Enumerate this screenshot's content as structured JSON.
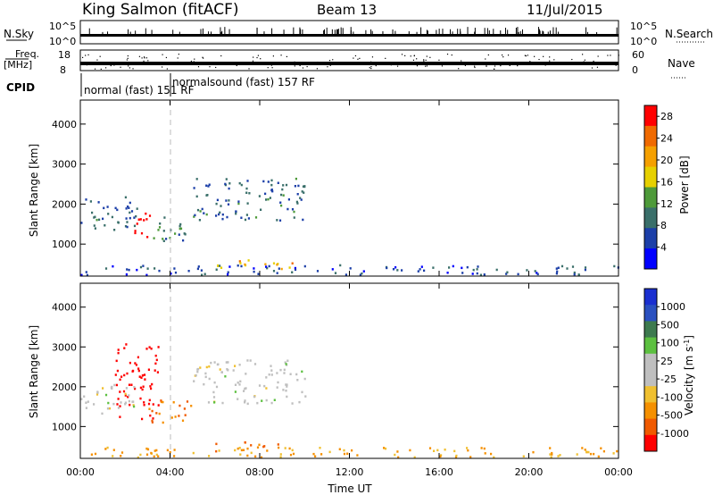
{
  "header": {
    "station": "King Salmon (fitACF)",
    "beam": "Beam 13",
    "date": "11/Jul/2015"
  },
  "top_panels": {
    "nsky_label": "N.Sky",
    "nsky_ticks": [
      "10^5",
      "10^0"
    ],
    "nsearch_label": "N.Search",
    "nsearch_ticks": [
      "10^5",
      "10^0"
    ],
    "freq_label": "Freq.",
    "freq_unit": "[MHz]",
    "freq_ticks": [
      "18",
      "8"
    ],
    "nave_label": "Nave",
    "nave_ticks": [
      "60",
      "0"
    ],
    "cpid_label": "CPID",
    "cpid_segments": [
      {
        "label": "normal (fast) 151 RF",
        "start_hour": 0,
        "end_hour": 4
      },
      {
        "label": "normalsound (fast) 157 RF",
        "start_hour": 4,
        "end_hour": 24
      }
    ]
  },
  "colors": {
    "power_scale": [
      "#0000ff",
      "#1c3fa8",
      "#3a6f6a",
      "#4e9a3a",
      "#e6d000",
      "#f5a000",
      "#f06a00",
      "#ff0000"
    ],
    "velocity_scale": [
      "#1a2fd0",
      "#2a50c0",
      "#3d7a4f",
      "#5cc040",
      "#bfbfbf",
      "#bfbfbf",
      "#f0c030",
      "#f59000",
      "#f05a00",
      "#ff0000"
    ]
  },
  "chart_data": [
    {
      "type": "heatmap",
      "panel": "power",
      "ylabel": "Slant Range [km]",
      "xlabel": "Time UT",
      "x_ticks": [
        "00:00",
        "04:00",
        "08:00",
        "12:00",
        "16:00",
        "20:00",
        "00:00"
      ],
      "xlim_hours": [
        0,
        24
      ],
      "y_ticks": [
        1000,
        2000,
        3000,
        4000
      ],
      "ylim": [
        200,
        4600
      ],
      "colorbar_label": "Power [dB]",
      "colorbar_ticks": [
        4,
        8,
        12,
        16,
        20,
        24,
        28
      ],
      "colorbar_range": [
        0,
        30
      ],
      "scatter_regions": [
        {
          "hours": [
            0.0,
            2.5
          ],
          "range_km": [
            1300,
            2200
          ],
          "level_db": 8
        },
        {
          "hours": [
            2.4,
            3.2
          ],
          "range_km": [
            1100,
            1900
          ],
          "level_db": 28
        },
        {
          "hours": [
            3.0,
            5.0
          ],
          "range_km": [
            1100,
            1700
          ],
          "level_db": 10
        },
        {
          "hours": [
            5.0,
            10.0
          ],
          "range_km": [
            1600,
            2700
          ],
          "level_db": 8
        },
        {
          "hours": [
            6.0,
            9.5
          ],
          "range_km": [
            400,
            650
          ],
          "level_db": 20
        },
        {
          "hours": [
            0.0,
            24.0
          ],
          "range_km": [
            250,
            500
          ],
          "level_db": 6
        }
      ]
    },
    {
      "type": "heatmap",
      "panel": "velocity",
      "ylabel": "Slant Range [km]",
      "xlabel": "Time UT",
      "x_ticks": [
        "00:00",
        "04:00",
        "08:00",
        "12:00",
        "16:00",
        "20:00",
        "00:00"
      ],
      "xlim_hours": [
        0,
        24
      ],
      "y_ticks": [
        1000,
        2000,
        3000,
        4000
      ],
      "ylim": [
        200,
        4600
      ],
      "colorbar_label": "Velocity [m s^-1]",
      "colorbar_ticks": [
        1000,
        500,
        100,
        25,
        -25,
        -100,
        -500,
        -1000
      ],
      "scatter_regions": [
        {
          "hours": [
            1.5,
            3.5
          ],
          "range_km": [
            1200,
            3100
          ],
          "velocity": -1000
        },
        {
          "hours": [
            0.0,
            2.5
          ],
          "range_km": [
            1300,
            2100
          ],
          "velocity": 0
        },
        {
          "hours": [
            3.0,
            5.0
          ],
          "range_km": [
            1100,
            1700
          ],
          "velocity": -500
        },
        {
          "hours": [
            5.0,
            10.0
          ],
          "range_km": [
            1600,
            2700
          ],
          "velocity": 0
        },
        {
          "hours": [
            6.0,
            9.5
          ],
          "range_km": [
            400,
            650
          ],
          "velocity": -500
        },
        {
          "hours": [
            0.0,
            24.0
          ],
          "range_km": [
            250,
            500
          ],
          "velocity": -100
        }
      ]
    }
  ]
}
